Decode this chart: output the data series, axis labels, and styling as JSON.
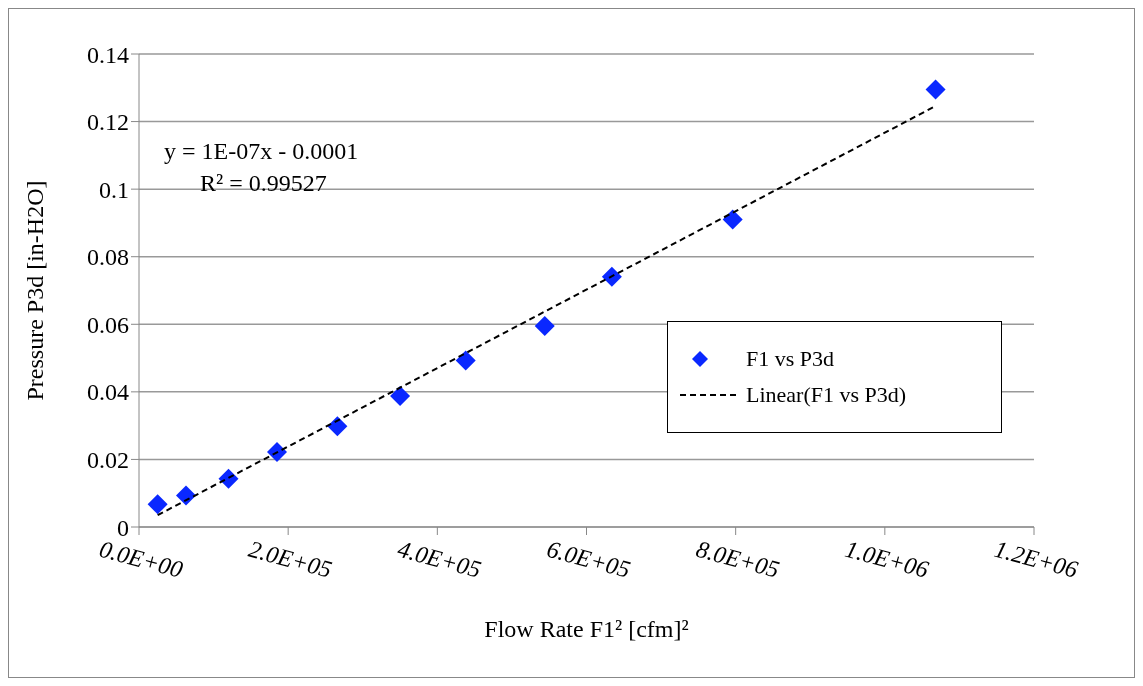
{
  "chart_data": {
    "type": "scatter",
    "xlabel": "Flow Rate F1² [cfm]²",
    "ylabel": "Pressure P3d [in-H2O]",
    "annotations": [
      "y = 1E-07x - 0.0001",
      "R² = 0.99527"
    ],
    "series": [
      {
        "name": "F1 vs P3d",
        "marker": "diamond",
        "color": "#0a28ff",
        "x": [
          25000,
          63000,
          120000,
          185000,
          266000,
          350000,
          438000,
          544000,
          634000,
          796000,
          1068000
        ],
        "values": [
          0.0067,
          0.0093,
          0.0143,
          0.0222,
          0.0298,
          0.0388,
          0.0493,
          0.0595,
          0.0741,
          0.091,
          0.1295
        ]
      },
      {
        "name": "Linear(F1 vs P3d)",
        "type": "line",
        "line_style": "dashed",
        "marker": "none",
        "color": "#000000",
        "x": [
          25000,
          1068000
        ],
        "values": [
          0.0035,
          0.1246
        ]
      }
    ],
    "xlim": [
      0,
      1200000
    ],
    "xticks": [
      {
        "value": 0,
        "label": "0.0E+00"
      },
      {
        "value": 200000,
        "label": "2.0E+05"
      },
      {
        "value": 400000,
        "label": "4.0E+05"
      },
      {
        "value": 600000,
        "label": "6.0E+05"
      },
      {
        "value": 800000,
        "label": "8.0E+05"
      },
      {
        "value": 1000000,
        "label": "1.0E+06"
      },
      {
        "value": 1200000,
        "label": "1.2E+06"
      }
    ],
    "ylim": [
      0,
      0.14
    ],
    "yticks": [
      0,
      0.02,
      0.04,
      0.06,
      0.08,
      0.1,
      0.12,
      0.14
    ],
    "grid": "y",
    "legend": "right"
  }
}
